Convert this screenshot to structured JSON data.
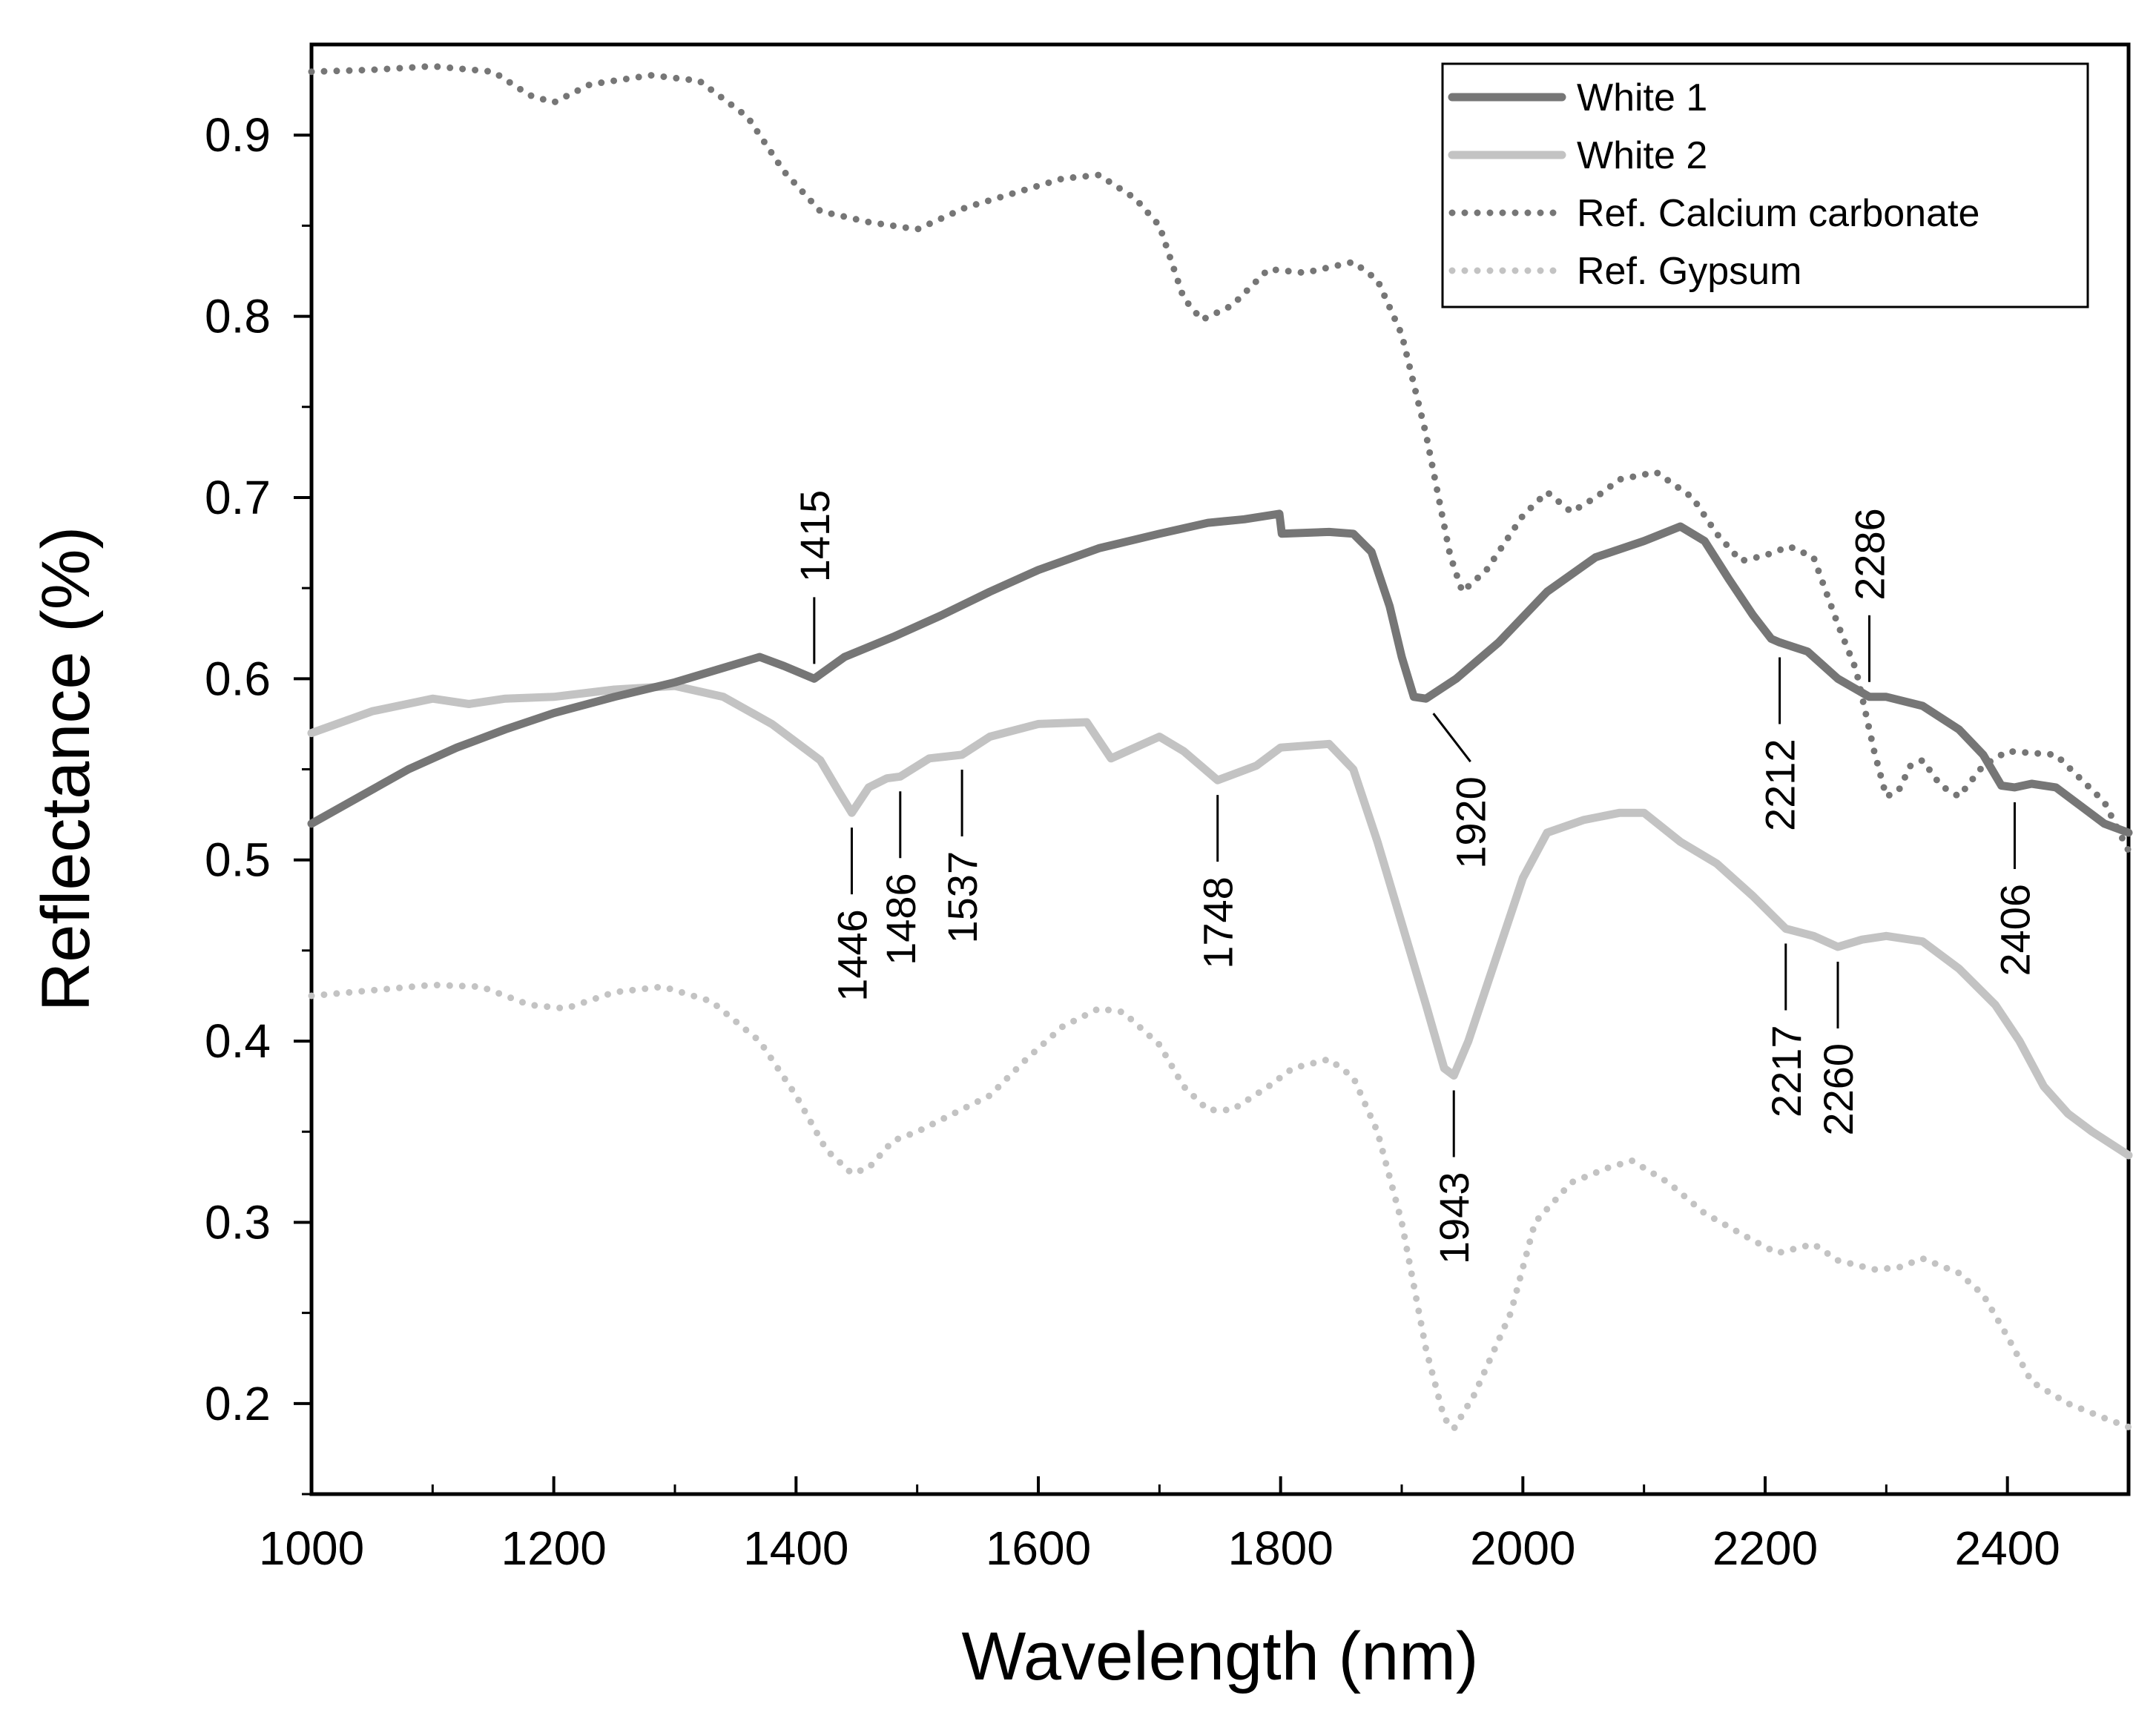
{
  "chart_data": {
    "type": "line",
    "title": "",
    "xlabel": "Wavelength (nm)",
    "ylabel": "Reflectance (%)",
    "xlim": [
      1000,
      2500
    ],
    "ylim": [
      0.15,
      0.95
    ],
    "xticks": [
      1000,
      1200,
      1400,
      1600,
      1800,
      2000,
      2200,
      2400
    ],
    "xtick_labels": [
      "1000",
      "1200",
      "1400",
      "1600",
      "1800",
      "2000",
      "2200",
      "2400"
    ],
    "yticks": [
      0.2,
      0.3,
      0.4,
      0.5,
      0.6,
      0.7,
      0.8,
      0.9
    ],
    "ytick_labels": [
      "0.2",
      "0.3",
      "0.4",
      "0.5",
      "0.6",
      "0.7",
      "0.8",
      "0.9"
    ],
    "grid": false,
    "legend_position": "top-right",
    "series": [
      {
        "name": "White 1",
        "color": "#767676",
        "style": "solid",
        "points": [
          [
            1000,
            0.52
          ],
          [
            1040,
            0.535
          ],
          [
            1080,
            0.55
          ],
          [
            1120,
            0.562
          ],
          [
            1160,
            0.572
          ],
          [
            1200,
            0.581
          ],
          [
            1250,
            0.59
          ],
          [
            1300,
            0.598
          ],
          [
            1340,
            0.606
          ],
          [
            1370,
            0.612
          ],
          [
            1390,
            0.607
          ],
          [
            1415,
            0.6
          ],
          [
            1440,
            0.612
          ],
          [
            1480,
            0.623
          ],
          [
            1520,
            0.635
          ],
          [
            1560,
            0.648
          ],
          [
            1600,
            0.66
          ],
          [
            1650,
            0.672
          ],
          [
            1700,
            0.68
          ],
          [
            1740,
            0.686
          ],
          [
            1770,
            0.688
          ],
          [
            1799,
            0.691
          ],
          [
            1801,
            0.68
          ],
          [
            1840,
            0.681
          ],
          [
            1860,
            0.68
          ],
          [
            1875,
            0.67
          ],
          [
            1890,
            0.64
          ],
          [
            1900,
            0.612
          ],
          [
            1910,
            0.59
          ],
          [
            1920,
            0.589
          ],
          [
            1945,
            0.6
          ],
          [
            1980,
            0.62
          ],
          [
            2020,
            0.648
          ],
          [
            2060,
            0.667
          ],
          [
            2100,
            0.676
          ],
          [
            2130,
            0.684
          ],
          [
            2150,
            0.676
          ],
          [
            2170,
            0.655
          ],
          [
            2190,
            0.635
          ],
          [
            2205,
            0.622
          ],
          [
            2212,
            0.62
          ],
          [
            2235,
            0.615
          ],
          [
            2260,
            0.6
          ],
          [
            2286,
            0.59
          ],
          [
            2300,
            0.59
          ],
          [
            2330,
            0.585
          ],
          [
            2360,
            0.572
          ],
          [
            2380,
            0.558
          ],
          [
            2395,
            0.541
          ],
          [
            2406,
            0.54
          ],
          [
            2420,
            0.542
          ],
          [
            2440,
            0.54
          ],
          [
            2460,
            0.53
          ],
          [
            2480,
            0.52
          ],
          [
            2500,
            0.515
          ]
        ]
      },
      {
        "name": "White 2",
        "color": "#c3c3c3",
        "style": "solid",
        "points": [
          [
            1000,
            0.57
          ],
          [
            1050,
            0.582
          ],
          [
            1100,
            0.589
          ],
          [
            1130,
            0.586
          ],
          [
            1160,
            0.589
          ],
          [
            1200,
            0.59
          ],
          [
            1250,
            0.594
          ],
          [
            1300,
            0.596
          ],
          [
            1340,
            0.59
          ],
          [
            1380,
            0.575
          ],
          [
            1400,
            0.565
          ],
          [
            1420,
            0.555
          ],
          [
            1435,
            0.538
          ],
          [
            1446,
            0.526
          ],
          [
            1460,
            0.54
          ],
          [
            1475,
            0.545
          ],
          [
            1486,
            0.546
          ],
          [
            1510,
            0.556
          ],
          [
            1537,
            0.558
          ],
          [
            1560,
            0.568
          ],
          [
            1600,
            0.575
          ],
          [
            1640,
            0.576
          ],
          [
            1660,
            0.556
          ],
          [
            1700,
            0.568
          ],
          [
            1720,
            0.56
          ],
          [
            1748,
            0.544
          ],
          [
            1780,
            0.552
          ],
          [
            1800,
            0.562
          ],
          [
            1840,
            0.564
          ],
          [
            1860,
            0.55
          ],
          [
            1880,
            0.51
          ],
          [
            1900,
            0.465
          ],
          [
            1920,
            0.42
          ],
          [
            1935,
            0.385
          ],
          [
            1943,
            0.381
          ],
          [
            1955,
            0.4
          ],
          [
            1970,
            0.43
          ],
          [
            1990,
            0.47
          ],
          [
            2000,
            0.49
          ],
          [
            2020,
            0.515
          ],
          [
            2050,
            0.522
          ],
          [
            2080,
            0.526
          ],
          [
            2100,
            0.526
          ],
          [
            2130,
            0.51
          ],
          [
            2160,
            0.498
          ],
          [
            2190,
            0.48
          ],
          [
            2217,
            0.462
          ],
          [
            2240,
            0.458
          ],
          [
            2260,
            0.452
          ],
          [
            2280,
            0.456
          ],
          [
            2300,
            0.458
          ],
          [
            2330,
            0.455
          ],
          [
            2360,
            0.44
          ],
          [
            2390,
            0.42
          ],
          [
            2410,
            0.4
          ],
          [
            2430,
            0.375
          ],
          [
            2450,
            0.36
          ],
          [
            2470,
            0.35
          ],
          [
            2500,
            0.337
          ]
        ]
      },
      {
        "name": "Ref. Calcium carbonate",
        "color": "#767676",
        "style": "dotted",
        "points": [
          [
            1000,
            0.935
          ],
          [
            1050,
            0.936
          ],
          [
            1100,
            0.938
          ],
          [
            1150,
            0.935
          ],
          [
            1180,
            0.922
          ],
          [
            1200,
            0.918
          ],
          [
            1230,
            0.928
          ],
          [
            1280,
            0.933
          ],
          [
            1320,
            0.93
          ],
          [
            1360,
            0.91
          ],
          [
            1390,
            0.88
          ],
          [
            1420,
            0.858
          ],
          [
            1460,
            0.852
          ],
          [
            1500,
            0.848
          ],
          [
            1540,
            0.86
          ],
          [
            1580,
            0.868
          ],
          [
            1620,
            0.876
          ],
          [
            1650,
            0.878
          ],
          [
            1680,
            0.865
          ],
          [
            1700,
            0.85
          ],
          [
            1720,
            0.81
          ],
          [
            1735,
            0.798
          ],
          [
            1760,
            0.806
          ],
          [
            1790,
            0.826
          ],
          [
            1820,
            0.824
          ],
          [
            1860,
            0.83
          ],
          [
            1880,
            0.82
          ],
          [
            1900,
            0.79
          ],
          [
            1920,
            0.735
          ],
          [
            1940,
            0.668
          ],
          [
            1950,
            0.648
          ],
          [
            1970,
            0.66
          ],
          [
            2000,
            0.69
          ],
          [
            2020,
            0.703
          ],
          [
            2040,
            0.692
          ],
          [
            2060,
            0.7
          ],
          [
            2080,
            0.71
          ],
          [
            2110,
            0.714
          ],
          [
            2140,
            0.7
          ],
          [
            2160,
            0.68
          ],
          [
            2180,
            0.665
          ],
          [
            2200,
            0.668
          ],
          [
            2220,
            0.673
          ],
          [
            2240,
            0.667
          ],
          [
            2260,
            0.63
          ],
          [
            2275,
            0.605
          ],
          [
            2290,
            0.56
          ],
          [
            2300,
            0.535
          ],
          [
            2310,
            0.538
          ],
          [
            2320,
            0.552
          ],
          [
            2330,
            0.555
          ],
          [
            2345,
            0.541
          ],
          [
            2360,
            0.535
          ],
          [
            2380,
            0.552
          ],
          [
            2400,
            0.56
          ],
          [
            2440,
            0.558
          ],
          [
            2480,
            0.532
          ],
          [
            2500,
            0.505
          ]
        ]
      },
      {
        "name": "Ref. Gypsum",
        "color": "#c3c3c3",
        "style": "dotted",
        "points": [
          [
            1000,
            0.425
          ],
          [
            1050,
            0.428
          ],
          [
            1100,
            0.431
          ],
          [
            1140,
            0.43
          ],
          [
            1180,
            0.42
          ],
          [
            1210,
            0.418
          ],
          [
            1250,
            0.427
          ],
          [
            1290,
            0.43
          ],
          [
            1330,
            0.422
          ],
          [
            1370,
            0.4
          ],
          [
            1400,
            0.37
          ],
          [
            1425,
            0.34
          ],
          [
            1446,
            0.327
          ],
          [
            1460,
            0.33
          ],
          [
            1480,
            0.345
          ],
          [
            1500,
            0.35
          ],
          [
            1530,
            0.36
          ],
          [
            1560,
            0.37
          ],
          [
            1590,
            0.39
          ],
          [
            1620,
            0.408
          ],
          [
            1650,
            0.418
          ],
          [
            1670,
            0.416
          ],
          [
            1700,
            0.398
          ],
          [
            1720,
            0.375
          ],
          [
            1740,
            0.362
          ],
          [
            1760,
            0.362
          ],
          [
            1790,
            0.375
          ],
          [
            1810,
            0.385
          ],
          [
            1840,
            0.39
          ],
          [
            1860,
            0.38
          ],
          [
            1880,
            0.35
          ],
          [
            1900,
            0.3
          ],
          [
            1920,
            0.23
          ],
          [
            1935,
            0.192
          ],
          [
            1943,
            0.186
          ],
          [
            1960,
            0.205
          ],
          [
            1990,
            0.25
          ],
          [
            2010,
            0.3
          ],
          [
            2040,
            0.322
          ],
          [
            2070,
            0.33
          ],
          [
            2090,
            0.334
          ],
          [
            2120,
            0.322
          ],
          [
            2150,
            0.305
          ],
          [
            2190,
            0.29
          ],
          [
            2210,
            0.283
          ],
          [
            2240,
            0.288
          ],
          [
            2260,
            0.279
          ],
          [
            2290,
            0.274
          ],
          [
            2310,
            0.275
          ],
          [
            2330,
            0.28
          ],
          [
            2360,
            0.272
          ],
          [
            2380,
            0.26
          ],
          [
            2400,
            0.237
          ],
          [
            2420,
            0.212
          ],
          [
            2450,
            0.2
          ],
          [
            2480,
            0.192
          ],
          [
            2500,
            0.187
          ]
        ]
      }
    ],
    "annotations": [
      {
        "label": "1415",
        "x": 1415,
        "y": 0.6,
        "side": "above",
        "line": "vertical"
      },
      {
        "label": "1446",
        "x": 1446,
        "y": 0.526,
        "side": "below",
        "line": "vertical"
      },
      {
        "label": "1486",
        "x": 1486,
        "y": 0.546,
        "side": "below",
        "line": "vertical"
      },
      {
        "label": "1537",
        "x": 1537,
        "y": 0.558,
        "side": "below",
        "line": "vertical"
      },
      {
        "label": "1748",
        "x": 1748,
        "y": 0.544,
        "side": "below",
        "line": "vertical"
      },
      {
        "label": "1920",
        "x": 1920,
        "y": 0.589,
        "side": "below",
        "line": "diagonal"
      },
      {
        "label": "1943",
        "x": 1943,
        "y": 0.381,
        "side": "below",
        "line": "vertical"
      },
      {
        "label": "2212",
        "x": 2212,
        "y": 0.62,
        "side": "below",
        "line": "vertical"
      },
      {
        "label": "2217",
        "x": 2217,
        "y": 0.462,
        "side": "below",
        "line": "vertical"
      },
      {
        "label": "2260",
        "x": 2260,
        "y": 0.452,
        "side": "below",
        "line": "vertical"
      },
      {
        "label": "2286",
        "x": 2286,
        "y": 0.59,
        "side": "above",
        "line": "vertical"
      },
      {
        "label": "2406",
        "x": 2406,
        "y": 0.54,
        "side": "below",
        "line": "vertical"
      }
    ]
  }
}
